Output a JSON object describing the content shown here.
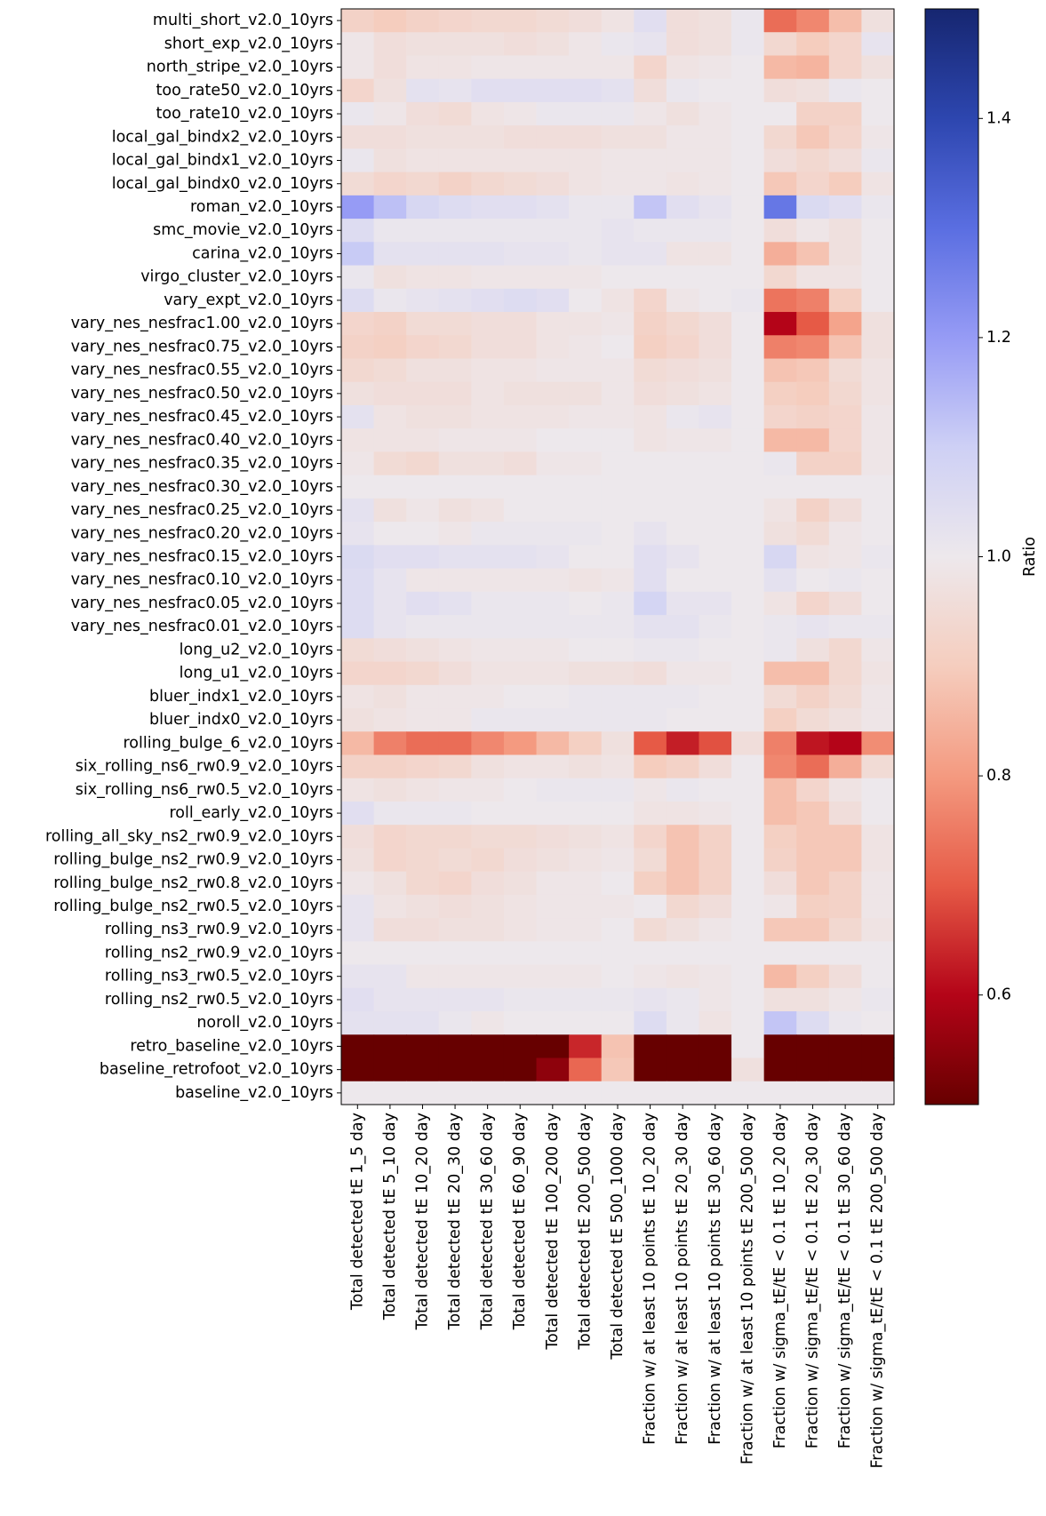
{
  "chart_data": {
    "type": "heatmap",
    "title": "",
    "colorbar": {
      "label": "Ratio",
      "vmin": 0.5,
      "vmax": 1.5,
      "ticks": [
        0.6,
        0.8,
        1.0,
        1.2,
        1.4
      ],
      "tick_labels": [
        "0.6",
        "0.8",
        "1.0",
        "1.2",
        "1.4"
      ],
      "colormap": "coolwarm-dark"
    },
    "rows": [
      "multi_short_v2.0_10yrs",
      "short_exp_v2.0_10yrs",
      "north_stripe_v2.0_10yrs",
      "too_rate50_v2.0_10yrs",
      "too_rate10_v2.0_10yrs",
      "local_gal_bindx2_v2.0_10yrs",
      "local_gal_bindx1_v2.0_10yrs",
      "local_gal_bindx0_v2.0_10yrs",
      "roman_v2.0_10yrs",
      "smc_movie_v2.0_10yrs",
      "carina_v2.0_10yrs",
      "virgo_cluster_v2.0_10yrs",
      "vary_expt_v2.0_10yrs",
      "vary_nes_nesfrac1.00_v2.0_10yrs",
      "vary_nes_nesfrac0.75_v2.0_10yrs",
      "vary_nes_nesfrac0.55_v2.0_10yrs",
      "vary_nes_nesfrac0.50_v2.0_10yrs",
      "vary_nes_nesfrac0.45_v2.0_10yrs",
      "vary_nes_nesfrac0.40_v2.0_10yrs",
      "vary_nes_nesfrac0.35_v2.0_10yrs",
      "vary_nes_nesfrac0.30_v2.0_10yrs",
      "vary_nes_nesfrac0.25_v2.0_10yrs",
      "vary_nes_nesfrac0.20_v2.0_10yrs",
      "vary_nes_nesfrac0.15_v2.0_10yrs",
      "vary_nes_nesfrac0.10_v2.0_10yrs",
      "vary_nes_nesfrac0.05_v2.0_10yrs",
      "vary_nes_nesfrac0.01_v2.0_10yrs",
      "long_u2_v2.0_10yrs",
      "long_u1_v2.0_10yrs",
      "bluer_indx1_v2.0_10yrs",
      "bluer_indx0_v2.0_10yrs",
      "rolling_bulge_6_v2.0_10yrs",
      "six_rolling_ns6_rw0.9_v2.0_10yrs",
      "six_rolling_ns6_rw0.5_v2.0_10yrs",
      "roll_early_v2.0_10yrs",
      "rolling_all_sky_ns2_rw0.9_v2.0_10yrs",
      "rolling_bulge_ns2_rw0.9_v2.0_10yrs",
      "rolling_bulge_ns2_rw0.8_v2.0_10yrs",
      "rolling_bulge_ns2_rw0.5_v2.0_10yrs",
      "rolling_ns3_rw0.9_v2.0_10yrs",
      "rolling_ns2_rw0.9_v2.0_10yrs",
      "rolling_ns3_rw0.5_v2.0_10yrs",
      "rolling_ns2_rw0.5_v2.0_10yrs",
      "noroll_v2.0_10yrs",
      "retro_baseline_v2.0_10yrs",
      "baseline_retrofoot_v2.0_10yrs",
      "baseline_v2.0_10yrs"
    ],
    "columns": [
      "Total detected tE 1_5 day",
      "Total detected tE 5_10 day",
      "Total detected tE 10_20 day",
      "Total detected tE 20_30 day",
      "Total detected tE 30_60 day",
      "Total detected tE 60_90 day",
      "Total detected tE 100_200 day",
      "Total detected tE 200_500 day",
      "Total detected tE 500_1000 day",
      "Fraction w/ at least 10 points tE 10_20 day",
      "Fraction w/ at least 10 points tE 20_30 day",
      "Fraction w/ at least 10 points tE 30_60 day",
      "Fraction w/ at least 10 points tE 200_500 day",
      "Fraction w/ sigma_tE/tE < 0.1 tE 10_20 day",
      "Fraction w/ sigma_tE/tE < 0.1 tE 20_30 day",
      "Fraction w/ sigma_tE/tE < 0.1 tE 30_60 day",
      "Fraction w/ sigma_tE/tE < 0.1 tE 200_500 day"
    ],
    "values": [
      [
        0.92,
        0.9,
        0.92,
        0.93,
        0.94,
        0.94,
        0.95,
        0.96,
        0.98,
        1.04,
        0.96,
        0.97,
        1.01,
        0.73,
        0.77,
        0.87,
        0.97
      ],
      [
        0.99,
        0.96,
        0.97,
        0.97,
        0.97,
        0.96,
        0.97,
        0.99,
        1.01,
        1.02,
        0.96,
        0.97,
        1.01,
        0.94,
        0.9,
        0.93,
        1.02
      ],
      [
        0.99,
        0.96,
        0.98,
        0.98,
        0.99,
        0.99,
        0.99,
        0.99,
        0.99,
        0.93,
        0.98,
        0.99,
        1.0,
        0.86,
        0.85,
        0.93,
        0.97
      ],
      [
        0.93,
        0.97,
        1.03,
        1.02,
        1.04,
        1.04,
        1.04,
        1.04,
        1.03,
        0.96,
        1.01,
        1.0,
        1.0,
        0.96,
        0.97,
        1.01,
        1.0
      ],
      [
        1.01,
        0.99,
        0.96,
        0.95,
        0.98,
        0.99,
        1.01,
        1.01,
        1.01,
        0.99,
        0.97,
        0.99,
        1.0,
        1.0,
        0.92,
        0.92,
        1.0
      ],
      [
        0.96,
        0.96,
        0.97,
        0.97,
        0.97,
        0.96,
        0.96,
        0.96,
        0.97,
        0.97,
        0.99,
        0.99,
        1.0,
        0.94,
        0.89,
        0.93,
        0.99
      ],
      [
        1.01,
        0.97,
        0.98,
        0.98,
        0.98,
        0.98,
        0.98,
        0.98,
        0.99,
        0.99,
        0.99,
        0.99,
        1.0,
        0.96,
        0.94,
        0.96,
        1.01
      ],
      [
        0.95,
        0.93,
        0.94,
        0.92,
        0.94,
        0.95,
        0.96,
        0.98,
        0.99,
        0.99,
        0.98,
        0.99,
        1.0,
        0.89,
        0.93,
        0.9,
        0.98
      ],
      [
        1.2,
        1.13,
        1.07,
        1.05,
        1.04,
        1.04,
        1.03,
        1.01,
        1.01,
        1.12,
        1.04,
        1.02,
        1.0,
        1.28,
        1.06,
        1.04,
        1.01
      ],
      [
        1.05,
        1.01,
        1.01,
        1.01,
        1.01,
        1.01,
        1.01,
        1.01,
        1.02,
        1.01,
        1.01,
        1.01,
        1.0,
        0.96,
        0.99,
        0.97,
        1.0
      ],
      [
        1.11,
        1.03,
        1.03,
        1.03,
        1.03,
        1.02,
        1.02,
        1.01,
        1.02,
        1.02,
        0.98,
        0.98,
        1.0,
        0.84,
        0.88,
        0.97,
        1.0
      ],
      [
        1.01,
        0.97,
        0.98,
        0.98,
        0.99,
        0.99,
        0.99,
        0.99,
        1.0,
        1.0,
        1.0,
        1.0,
        1.0,
        0.94,
        0.98,
        0.98,
        1.0
      ],
      [
        1.05,
        1.01,
        1.02,
        1.03,
        1.04,
        1.05,
        1.04,
        1.0,
        0.98,
        0.93,
        0.99,
        1.0,
        1.01,
        0.74,
        0.76,
        0.91,
        1.0
      ],
      [
        0.93,
        0.92,
        0.95,
        0.95,
        0.96,
        0.96,
        0.98,
        0.98,
        0.99,
        0.92,
        0.94,
        0.96,
        1.0,
        0.6,
        0.7,
        0.82,
        0.97
      ],
      [
        0.92,
        0.91,
        0.93,
        0.94,
        0.96,
        0.96,
        0.98,
        0.99,
        1.0,
        0.91,
        0.93,
        0.96,
        1.0,
        0.76,
        0.77,
        0.88,
        0.97
      ],
      [
        0.94,
        0.95,
        0.97,
        0.97,
        0.98,
        0.98,
        0.99,
        0.99,
        0.99,
        0.95,
        0.96,
        0.97,
        1.0,
        0.88,
        0.89,
        0.95,
        0.98
      ],
      [
        0.97,
        0.96,
        0.96,
        0.96,
        0.98,
        0.97,
        0.97,
        0.97,
        0.99,
        0.96,
        0.97,
        0.98,
        1.0,
        0.91,
        0.9,
        0.94,
        0.98
      ],
      [
        1.03,
        0.98,
        0.97,
        0.97,
        0.98,
        0.98,
        0.98,
        0.99,
        0.99,
        0.98,
        1.01,
        1.02,
        1.0,
        0.93,
        0.92,
        0.93,
        0.99
      ],
      [
        0.98,
        0.98,
        0.98,
        0.99,
        0.99,
        0.99,
        1.0,
        1.0,
        1.0,
        0.98,
        0.99,
        0.99,
        1.0,
        0.86,
        0.86,
        0.93,
        0.99
      ],
      [
        0.99,
        0.95,
        0.94,
        0.97,
        0.97,
        0.96,
        0.99,
        0.99,
        1.0,
        1.0,
        1.0,
        1.0,
        1.0,
        1.01,
        0.92,
        0.92,
        0.99
      ],
      [
        1.0,
        1.0,
        1.0,
        1.0,
        1.0,
        1.0,
        1.0,
        1.0,
        1.0,
        1.0,
        1.0,
        1.0,
        1.0,
        1.0,
        1.0,
        1.0,
        1.0
      ],
      [
        1.03,
        0.97,
        0.99,
        0.97,
        0.98,
        1.0,
        1.0,
        1.0,
        1.0,
        1.0,
        1.0,
        1.0,
        1.0,
        0.98,
        0.92,
        0.96,
        1.0
      ],
      [
        1.02,
        1.0,
        1.0,
        0.99,
        1.01,
        1.01,
        1.01,
        1.01,
        1.0,
        1.02,
        1.0,
        1.0,
        1.0,
        0.97,
        0.95,
        0.99,
        1.0
      ],
      [
        1.06,
        1.04,
        1.04,
        1.03,
        1.03,
        1.03,
        1.02,
        1.0,
        1.0,
        1.04,
        1.02,
        1.0,
        1.0,
        1.07,
        0.98,
        0.99,
        1.01
      ],
      [
        1.05,
        1.02,
        0.99,
        0.99,
        0.99,
        0.99,
        0.99,
        0.98,
        0.99,
        1.04,
        1.0,
        1.0,
        1.0,
        1.03,
        1.0,
        1.01,
        1.0
      ],
      [
        1.05,
        1.02,
        1.04,
        1.03,
        1.01,
        1.01,
        1.01,
        1.0,
        1.01,
        1.08,
        1.02,
        1.02,
        1.0,
        0.98,
        0.93,
        0.96,
        1.0
      ],
      [
        1.05,
        1.02,
        1.01,
        1.01,
        1.01,
        1.01,
        1.01,
        1.01,
        1.01,
        1.03,
        1.03,
        1.01,
        1.0,
        1.01,
        1.02,
        1.01,
        1.01
      ],
      [
        0.95,
        0.96,
        0.97,
        0.98,
        0.99,
        0.99,
        0.99,
        1.0,
        1.0,
        1.01,
        1.01,
        1.0,
        1.0,
        1.01,
        0.97,
        0.94,
        0.99
      ],
      [
        0.93,
        0.93,
        0.94,
        0.96,
        0.98,
        0.98,
        0.98,
        0.97,
        0.97,
        0.96,
        0.99,
        0.99,
        1.0,
        0.87,
        0.87,
        0.94,
        0.98
      ],
      [
        0.98,
        0.97,
        0.99,
        0.99,
        0.99,
        1.0,
        1.0,
        1.01,
        1.01,
        1.01,
        1.01,
        1.0,
        1.0,
        0.95,
        0.92,
        0.95,
        0.99
      ],
      [
        0.97,
        0.98,
        0.99,
        0.99,
        1.01,
        1.01,
        1.01,
        1.01,
        1.01,
        1.01,
        1.0,
        1.0,
        1.0,
        0.91,
        0.95,
        0.97,
        0.99
      ],
      [
        0.86,
        0.76,
        0.73,
        0.73,
        0.77,
        0.8,
        0.86,
        0.91,
        0.97,
        0.7,
        0.63,
        0.69,
        0.96,
        0.76,
        0.62,
        0.6,
        0.78
      ],
      [
        0.92,
        0.92,
        0.93,
        0.94,
        0.97,
        0.98,
        0.98,
        0.97,
        0.98,
        0.9,
        0.92,
        0.96,
        1.0,
        0.77,
        0.73,
        0.84,
        0.95
      ],
      [
        0.98,
        0.97,
        0.98,
        0.99,
        0.99,
        1.0,
        1.01,
        1.01,
        1.01,
        0.99,
        1.01,
        1.0,
        1.0,
        0.87,
        0.93,
        0.98,
        1.0
      ],
      [
        1.04,
        1.01,
        1.01,
        1.01,
        1.0,
        1.0,
        1.0,
        1.0,
        1.0,
        0.98,
        0.98,
        0.99,
        1.0,
        0.87,
        0.89,
        0.96,
        1.0
      ],
      [
        0.96,
        0.93,
        0.94,
        0.94,
        0.95,
        0.95,
        0.96,
        0.97,
        0.98,
        0.93,
        0.88,
        0.92,
        1.0,
        0.91,
        0.89,
        0.89,
        0.98
      ],
      [
        0.97,
        0.93,
        0.94,
        0.95,
        0.94,
        0.96,
        0.97,
        0.98,
        0.99,
        0.95,
        0.88,
        0.92,
        1.0,
        0.92,
        0.89,
        0.89,
        0.98
      ],
      [
        0.99,
        0.97,
        0.94,
        0.93,
        0.96,
        0.97,
        0.99,
        0.99,
        1.0,
        0.91,
        0.88,
        0.92,
        1.0,
        0.96,
        0.89,
        0.92,
        0.99
      ],
      [
        1.02,
        0.98,
        0.97,
        0.96,
        0.97,
        0.98,
        0.99,
        0.99,
        0.99,
        1.0,
        0.94,
        0.96,
        1.0,
        0.99,
        0.91,
        0.92,
        0.99
      ],
      [
        1.02,
        0.96,
        0.96,
        0.97,
        0.97,
        0.98,
        0.99,
        0.99,
        1.0,
        0.95,
        0.97,
        0.99,
        1.0,
        0.89,
        0.89,
        0.94,
        0.98
      ],
      [
        1.0,
        1.0,
        1.0,
        1.0,
        1.0,
        1.0,
        1.0,
        1.0,
        1.0,
        1.0,
        1.0,
        1.0,
        1.0,
        1.0,
        1.0,
        1.0,
        1.0
      ],
      [
        1.02,
        1.02,
        0.99,
        0.99,
        0.99,
        0.99,
        0.99,
        0.99,
        1.0,
        0.99,
        0.98,
        0.99,
        1.0,
        0.86,
        0.91,
        0.96,
        1.0
      ],
      [
        1.04,
        1.02,
        1.02,
        1.02,
        1.02,
        1.01,
        1.01,
        1.01,
        1.01,
        1.02,
        1.01,
        0.99,
        1.0,
        0.97,
        0.97,
        0.99,
        1.01
      ],
      [
        1.03,
        1.03,
        1.03,
        1.01,
        0.99,
        1.0,
        1.0,
        1.0,
        1.0,
        1.05,
        1.01,
        0.98,
        1.0,
        1.12,
        1.05,
        1.01,
        1.0
      ],
      [
        0.5,
        0.5,
        0.5,
        0.5,
        0.5,
        0.5,
        0.5,
        0.64,
        0.88,
        0.5,
        0.5,
        0.5,
        1.0,
        0.5,
        0.5,
        0.5,
        0.5
      ],
      [
        0.5,
        0.5,
        0.5,
        0.5,
        0.5,
        0.5,
        0.55,
        0.72,
        0.89,
        0.5,
        0.5,
        0.5,
        0.97,
        0.5,
        0.5,
        0.5,
        0.5
      ],
      [
        1.0,
        1.0,
        1.0,
        1.0,
        1.0,
        1.0,
        1.0,
        1.0,
        1.0,
        1.0,
        1.0,
        1.0,
        1.0,
        1.0,
        1.0,
        1.0,
        1.0
      ]
    ]
  }
}
